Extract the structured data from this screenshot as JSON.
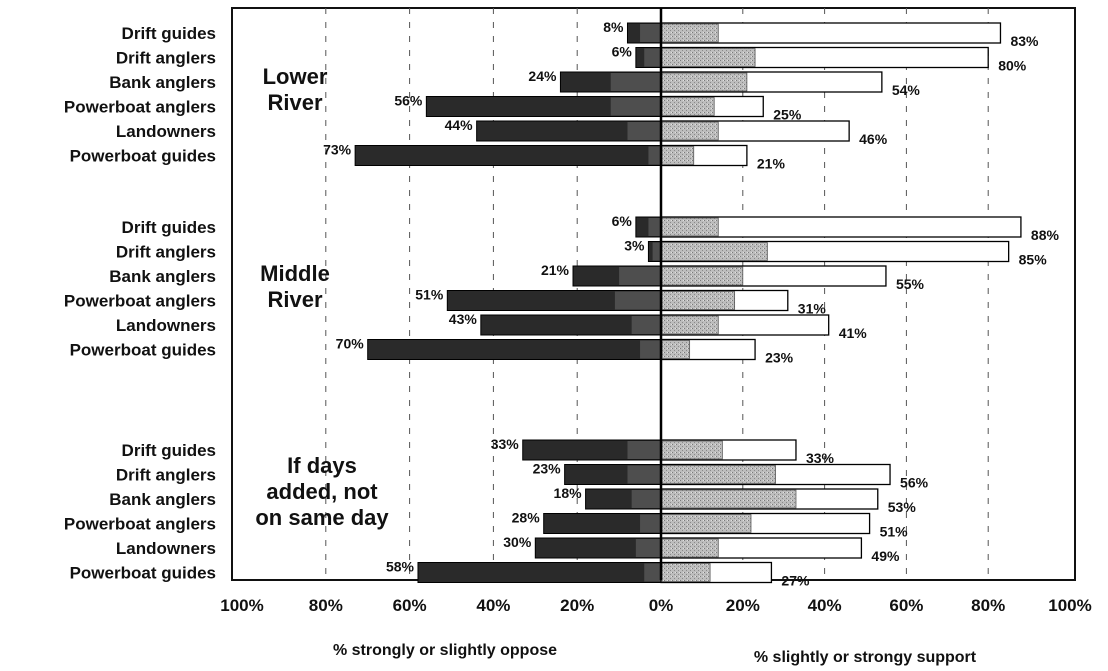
{
  "chart_data": {
    "type": "bar",
    "orientation": "horizontal-diverging",
    "xlabel_left": "% strongly or slightly oppose",
    "xlabel_right": "% slightly or strongy support",
    "xlim": [
      -100,
      100
    ],
    "ticks": [
      "100%",
      "80%",
      "60%",
      "40%",
      "20%",
      "0%",
      "20%",
      "40%",
      "60%",
      "80%",
      "100%"
    ],
    "grid": "vertical dashed",
    "colors": {
      "strongly_oppose": "#2a2a2a",
      "slightly_oppose": "#4e4e4e",
      "slightly_support": "#b5b5b5",
      "strongly_support": "#ffffff"
    },
    "groups": [
      {
        "label_lines": [
          "Lower",
          "River"
        ],
        "rows": [
          {
            "category": "Drift guides",
            "oppose": 8,
            "oppose_label": "8%",
            "slight_oppose": 5,
            "support": 83,
            "support_label": "83%",
            "slight_support": 14
          },
          {
            "category": "Drift anglers",
            "oppose": 6,
            "oppose_label": "6%",
            "slight_oppose": 4,
            "support": 80,
            "support_label": "80%",
            "slight_support": 23
          },
          {
            "category": "Bank anglers",
            "oppose": 24,
            "oppose_label": "24%",
            "slight_oppose": 12,
            "support": 54,
            "support_label": "54%",
            "slight_support": 21
          },
          {
            "category": "Powerboat anglers",
            "oppose": 56,
            "oppose_label": "56%",
            "slight_oppose": 12,
            "support": 25,
            "support_label": "25%",
            "slight_support": 13
          },
          {
            "category": "Landowners",
            "oppose": 44,
            "oppose_label": "44%",
            "slight_oppose": 8,
            "support": 46,
            "support_label": "46%",
            "slight_support": 14
          },
          {
            "category": "Powerboat guides",
            "oppose": 73,
            "oppose_label": "73%",
            "slight_oppose": 3,
            "support": 21,
            "support_label": "21%",
            "slight_support": 8
          }
        ]
      },
      {
        "label_lines": [
          "Middle",
          "River"
        ],
        "rows": [
          {
            "category": "Drift guides",
            "oppose": 6,
            "oppose_label": "6%",
            "slight_oppose": 3,
            "support": 88,
            "support_label": "88%",
            "slight_support": 14
          },
          {
            "category": "Drift anglers",
            "oppose": 3,
            "oppose_label": "3%",
            "slight_oppose": 2,
            "support": 85,
            "support_label": "85%",
            "slight_support": 26
          },
          {
            "category": "Bank anglers",
            "oppose": 21,
            "oppose_label": "21%",
            "slight_oppose": 10,
            "support": 55,
            "support_label": "55%",
            "slight_support": 20
          },
          {
            "category": "Powerboat anglers",
            "oppose": 51,
            "oppose_label": "51%",
            "slight_oppose": 11,
            "support": 31,
            "support_label": "31%",
            "slight_support": 18
          },
          {
            "category": "Landowners",
            "oppose": 43,
            "oppose_label": "43%",
            "slight_oppose": 7,
            "support": 41,
            "support_label": "41%",
            "slight_support": 14
          },
          {
            "category": "Powerboat guides",
            "oppose": 70,
            "oppose_label": "70%",
            "slight_oppose": 5,
            "support": 23,
            "support_label": "23%",
            "slight_support": 7
          }
        ]
      },
      {
        "label_lines": [
          "If days",
          "added, not",
          "on same day"
        ],
        "rows": [
          {
            "category": "Drift guides",
            "oppose": 33,
            "oppose_label": "33%",
            "slight_oppose": 8,
            "support": 33,
            "support_label": "33%",
            "slight_support": 15
          },
          {
            "category": "Drift anglers",
            "oppose": 23,
            "oppose_label": "23%",
            "slight_oppose": 8,
            "support": 56,
            "support_label": "56%",
            "slight_support": 28
          },
          {
            "category": "Bank anglers",
            "oppose": 18,
            "oppose_label": "18%",
            "slight_oppose": 7,
            "support": 53,
            "support_label": "53%",
            "slight_support": 33
          },
          {
            "category": "Powerboat anglers",
            "oppose": 28,
            "oppose_label": "28%",
            "slight_oppose": 5,
            "support": 51,
            "support_label": "51%",
            "slight_support": 22
          },
          {
            "category": "Landowners",
            "oppose": 30,
            "oppose_label": "30%",
            "slight_oppose": 6,
            "support": 49,
            "support_label": "49%",
            "slight_support": 14
          },
          {
            "category": "Powerboat guides",
            "oppose": 58,
            "oppose_label": "58%",
            "slight_oppose": 4,
            "support": 27,
            "support_label": "27%",
            "slight_support": 12
          }
        ]
      }
    ]
  }
}
